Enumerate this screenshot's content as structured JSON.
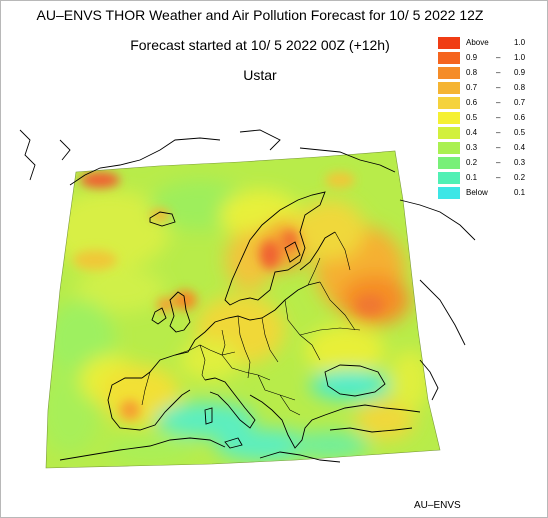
{
  "title_line1": "AU–ENVS THOR Weather and Air Pollution Forecast for 10/ 5 2022  12Z",
  "title_line2": "Forecast started at 10/ 5 2022  00Z (+12h)",
  "title_line3": "Ustar",
  "footer": "AU–ENVS",
  "legend": [
    {
      "a": "Above",
      "b": "1.0",
      "color": "#f03c14"
    },
    {
      "a": "0.9",
      "b": "1.0",
      "color": "#f5641e"
    },
    {
      "a": "0.8",
      "b": "0.9",
      "color": "#f58c28"
    },
    {
      "a": "0.7",
      "b": "0.8",
      "color": "#f5b432"
    },
    {
      "a": "0.6",
      "b": "0.7",
      "color": "#f5d23c"
    },
    {
      "a": "0.5",
      "b": "0.6",
      "color": "#f5f032"
    },
    {
      "a": "0.4",
      "b": "0.5",
      "color": "#d2f03c"
    },
    {
      "a": "0.3",
      "b": "0.4",
      "color": "#aaf050"
    },
    {
      "a": "0.2",
      "b": "0.3",
      "color": "#78f078"
    },
    {
      "a": "0.1",
      "b": "0.2",
      "color": "#50f0b4"
    },
    {
      "a": "Below",
      "b": "0.1",
      "color": "#3ce6e6"
    }
  ]
}
